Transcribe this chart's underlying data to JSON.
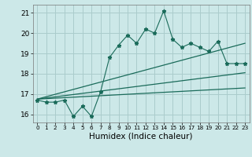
{
  "title": "",
  "xlabel": "Humidex (Indice chaleur)",
  "bg_color": "#cce8e8",
  "grid_color": "#aacccc",
  "line_color": "#1a6b5a",
  "x_data": [
    0,
    1,
    2,
    3,
    4,
    5,
    6,
    7,
    8,
    9,
    10,
    11,
    12,
    13,
    14,
    15,
    16,
    17,
    18,
    19,
    20,
    21,
    22,
    23
  ],
  "y_data": [
    16.7,
    16.6,
    16.6,
    16.7,
    15.9,
    16.4,
    15.9,
    17.1,
    18.8,
    19.4,
    19.9,
    19.5,
    20.2,
    20.0,
    21.1,
    19.7,
    19.3,
    19.5,
    19.3,
    19.1,
    19.6,
    18.5,
    18.5,
    18.5
  ],
  "reg_line": [
    [
      0,
      16.75
    ],
    [
      23,
      18.05
    ]
  ],
  "upper_line": [
    [
      0,
      16.75
    ],
    [
      23,
      19.5
    ]
  ],
  "lower_line": [
    [
      0,
      16.75
    ],
    [
      23,
      17.3
    ]
  ],
  "ylim": [
    15.6,
    21.4
  ],
  "xlim": [
    -0.5,
    23.5
  ],
  "yticks": [
    16,
    17,
    18,
    19,
    20,
    21
  ],
  "xticks": [
    0,
    1,
    2,
    3,
    4,
    5,
    6,
    7,
    8,
    9,
    10,
    11,
    12,
    13,
    14,
    15,
    16,
    17,
    18,
    19,
    20,
    21,
    22,
    23
  ],
  "xlabel_fontsize": 7.5,
  "tick_fontsize": 6.5,
  "xtick_fontsize": 5.2
}
